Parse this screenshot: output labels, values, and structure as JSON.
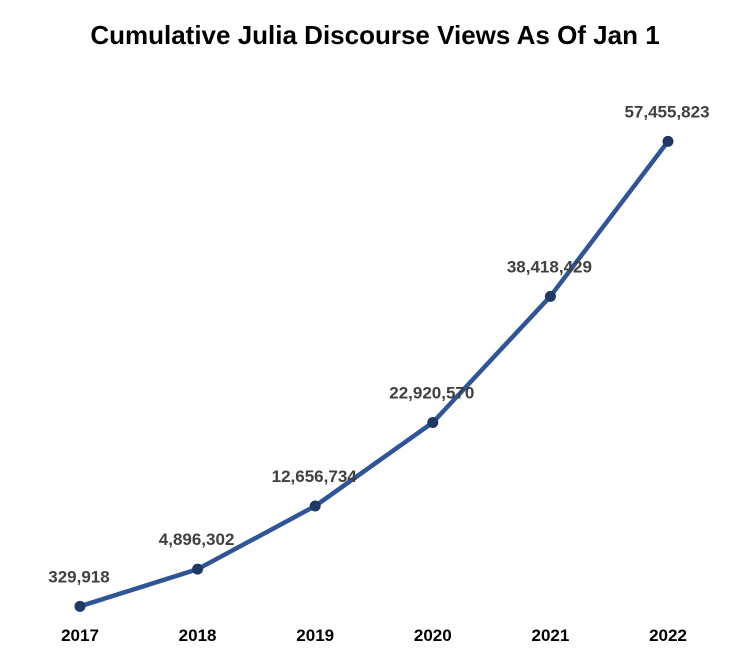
{
  "chart_data": {
    "type": "line",
    "title": "Cumulative Julia Discourse Views As Of Jan 1",
    "xlabel": "",
    "ylabel": "",
    "categories": [
      "2017",
      "2018",
      "2019",
      "2020",
      "2021",
      "2022"
    ],
    "series": [
      {
        "values": [
          329918,
          4896302,
          12656734,
          22920570,
          38418429,
          57455823
        ],
        "labels": [
          "329,918",
          "4,896,302",
          "12,656,734",
          "22,920,570",
          "38,418,429",
          "57,455,823"
        ],
        "color": "#2f5597",
        "marker_color": "#1f3864"
      }
    ],
    "ylim": [
      0,
      65000000
    ],
    "grid": false,
    "legend": "none"
  }
}
